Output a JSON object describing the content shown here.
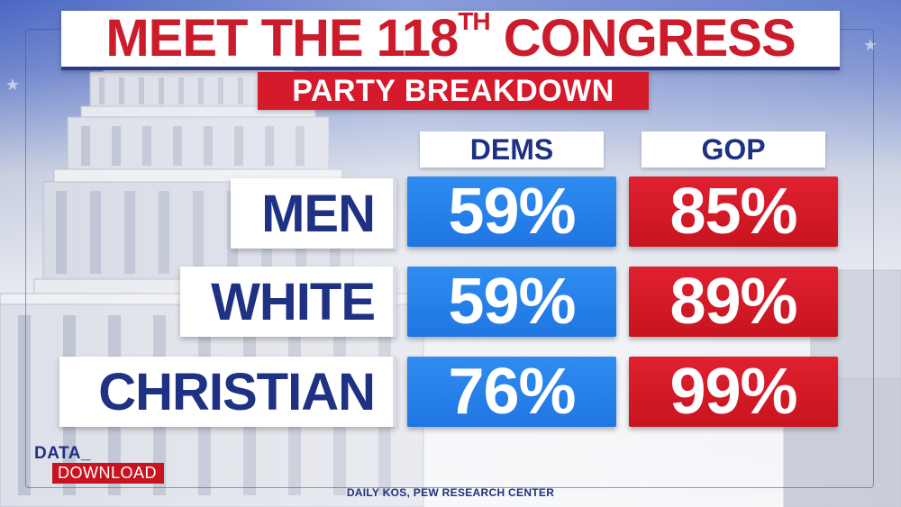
{
  "title": {
    "main": "MEET THE 118",
    "superscript": "TH",
    "rest": " CONGRESS"
  },
  "subtitle": "PARTY BREAKDOWN",
  "chart_data": {
    "type": "table",
    "columns": [
      "DEMS",
      "GOP"
    ],
    "rows": [
      {
        "label": "MEN",
        "values": [
          "59%",
          "85%"
        ]
      },
      {
        "label": "WHITE",
        "values": [
          "59%",
          "89%"
        ]
      },
      {
        "label": "CHRISTIAN",
        "values": [
          "76%",
          "99%"
        ]
      }
    ]
  },
  "logo": {
    "top": "DATA_",
    "bottom": "DOWNLOAD"
  },
  "source": "DAILY KOS, PEW RESEARCH CENTER",
  "colors": {
    "dem": "#1f76e2",
    "gop": "#c8141f",
    "navy": "#1e3183",
    "title_red": "#cc1b2a"
  }
}
